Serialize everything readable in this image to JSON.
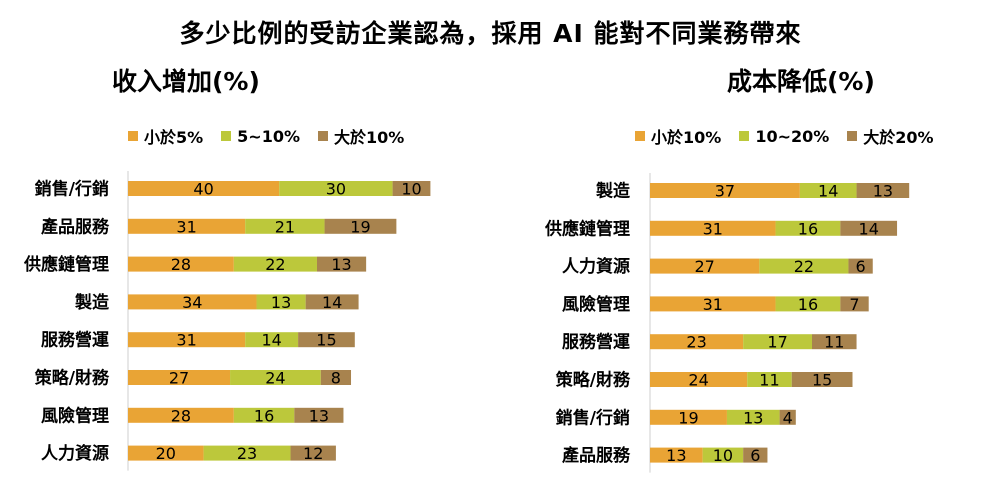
{
  "title": "多少比例的受訪企業認為，採用 AI 能對不同業務帶來",
  "colors": {
    "s1": "#e9a435",
    "s2": "#bcc83b",
    "s3": "#a8834e"
  },
  "chart_data": [
    {
      "type": "bar",
      "orientation": "horizontal",
      "stacked": true,
      "title": "收入增加(%)",
      "categories": [
        "銷售/行銷",
        "產品服務",
        "供應鏈管理",
        "製造",
        "服務營運",
        "策略/財務",
        "風險管理",
        "人力資源"
      ],
      "series": [
        {
          "name": "小於5%",
          "values": [
            40,
            31,
            28,
            34,
            31,
            27,
            28,
            20
          ]
        },
        {
          "name": "5~10%",
          "values": [
            30,
            21,
            22,
            13,
            14,
            24,
            16,
            23
          ]
        },
        {
          "name": "大於10%",
          "values": [
            10,
            19,
            13,
            14,
            15,
            8,
            13,
            12
          ]
        }
      ],
      "legend_position": "top",
      "grid": false
    },
    {
      "type": "bar",
      "orientation": "horizontal",
      "stacked": true,
      "title": "成本降低(%)",
      "categories": [
        "製造",
        "供應鏈管理",
        "人力資源",
        "風險管理",
        "服務營運",
        "策略/財務",
        "銷售/行銷",
        "產品服務"
      ],
      "series": [
        {
          "name": "小於10%",
          "values": [
            37,
            31,
            27,
            31,
            23,
            24,
            19,
            13
          ]
        },
        {
          "name": "10~20%",
          "values": [
            14,
            16,
            22,
            16,
            17,
            11,
            13,
            10
          ]
        },
        {
          "name": "大於20%",
          "values": [
            13,
            14,
            6,
            7,
            11,
            15,
            4,
            6
          ]
        }
      ],
      "legend_position": "top",
      "grid": false
    }
  ]
}
